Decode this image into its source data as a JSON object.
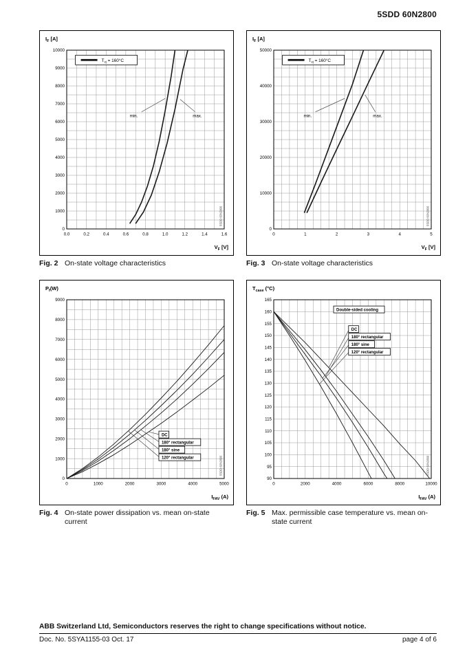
{
  "header": {
    "title": "5SDD 60N2800"
  },
  "footer": {
    "notice": "ABB Switzerland Ltd, Semiconductors reserves the right to change specifications without notice.",
    "doc": "Doc. No. 5SYA1155-03 Oct. 17",
    "page": "page 4 of 6"
  },
  "chart_data": [
    {
      "type": "line",
      "caption": {
        "fig": "Fig. 2",
        "text": "On-state voltage characteristics"
      },
      "watermark": "5SDD 60N2800",
      "x": {
        "min": 0,
        "max": 1.6,
        "step": 0.2,
        "grid": 0.1,
        "dec": 1,
        "title": {
          "pre": "V",
          "sub": "F",
          "post": " [V]"
        }
      },
      "y": {
        "min": 0,
        "max": 10000,
        "step": 1000,
        "grid": 500,
        "dec": 0,
        "title": {
          "pre": "I",
          "sub": "F",
          "post": " [A]"
        }
      },
      "legend": {
        "fx": 0.055,
        "fy": 0.028,
        "pre": "T",
        "sub": "vj",
        "post": " = 160°C"
      },
      "series": [
        {
          "name": "min",
          "w": 1.6,
          "points": [
            [
              0.64,
              300
            ],
            [
              0.7,
              800
            ],
            [
              0.76,
              1500
            ],
            [
              0.82,
              2400
            ],
            [
              0.88,
              3500
            ],
            [
              0.94,
              4900
            ],
            [
              1.0,
              6600
            ],
            [
              1.06,
              8500
            ],
            [
              1.1,
              10000
            ]
          ]
        },
        {
          "name": "max",
          "w": 1.6,
          "points": [
            [
              0.7,
              300
            ],
            [
              0.78,
              950
            ],
            [
              0.86,
              1900
            ],
            [
              0.94,
              3200
            ],
            [
              1.02,
              4800
            ],
            [
              1.1,
              6700
            ],
            [
              1.18,
              8900
            ],
            [
              1.23,
              10000
            ]
          ]
        }
      ],
      "labels": [
        {
          "text": "min.",
          "fx": 0.4,
          "fy": 0.375,
          "leader": [
            0.475,
            0.345,
            0.625,
            0.27
          ]
        },
        {
          "text": "max.",
          "fx": 0.8,
          "fy": 0.375,
          "leader": [
            0.815,
            0.345,
            0.72,
            0.275
          ]
        }
      ]
    },
    {
      "type": "line",
      "caption": {
        "fig": "Fig. 3",
        "text": "On-state voltage characteristics"
      },
      "watermark": "5SDD 60N2800",
      "x": {
        "min": 0,
        "max": 5,
        "step": 1,
        "grid": 0.25,
        "dec": 0,
        "title": {
          "pre": "V",
          "sub": "F",
          "post": " [V]"
        }
      },
      "y": {
        "min": 0,
        "max": 50000,
        "step": 10000,
        "grid": 2500,
        "dec": 0,
        "title": {
          "pre": "I",
          "sub": "F",
          "post": " [A]"
        }
      },
      "legend": {
        "fx": 0.055,
        "fy": 0.028,
        "pre": "T",
        "sub": "vj",
        "post": " = 160°C"
      },
      "series": [
        {
          "name": "min",
          "w": 1.6,
          "points": [
            [
              0.97,
              4500
            ],
            [
              1.3,
              12000
            ],
            [
              1.7,
              21500
            ],
            [
              2.1,
              31000
            ],
            [
              2.5,
              40500
            ],
            [
              2.85,
              50000
            ]
          ]
        },
        {
          "name": "max",
          "w": 1.6,
          "points": [
            [
              1.05,
              4500
            ],
            [
              1.5,
              13000
            ],
            [
              2.0,
              22300
            ],
            [
              2.5,
              31500
            ],
            [
              3.0,
              40800
            ],
            [
              3.5,
              50000
            ]
          ]
        }
      ],
      "labels": [
        {
          "text": "min.",
          "fx": 0.19,
          "fy": 0.375,
          "leader": [
            0.265,
            0.345,
            0.45,
            0.27
          ]
        },
        {
          "text": "max.",
          "fx": 0.63,
          "fy": 0.375,
          "leader": [
            0.645,
            0.345,
            0.58,
            0.25
          ]
        }
      ]
    },
    {
      "type": "line",
      "caption": {
        "fig": "Fig. 4",
        "text": "On-state power dissipation vs. mean on-state current"
      },
      "watermark": "5SDD 60N2800",
      "x": {
        "min": 0,
        "max": 5000,
        "step": 1000,
        "grid": 250,
        "dec": 0,
        "title": {
          "pre": "I",
          "sub": "FAV",
          "post": " (A)"
        }
      },
      "y": {
        "min": 0,
        "max": 9000,
        "step": 1000,
        "grid": 500,
        "dec": 0,
        "title": {
          "pre": "P",
          "sub": "f",
          "post": "(W)"
        }
      },
      "series": [
        {
          "name": "DC",
          "w": 0.9,
          "points": [
            [
              0,
              0
            ],
            [
              500,
              340
            ],
            [
              1000,
              750
            ],
            [
              1500,
              1200
            ],
            [
              2000,
              1700
            ],
            [
              2500,
              2240
            ],
            [
              3000,
              2780
            ],
            [
              3500,
              3350
            ],
            [
              4000,
              3950
            ],
            [
              4500,
              4560
            ],
            [
              5000,
              5200
            ]
          ]
        },
        {
          "name": "180-rectangular",
          "w": 0.9,
          "points": [
            [
              0,
              0
            ],
            [
              500,
              400
            ],
            [
              1000,
              880
            ],
            [
              1500,
              1420
            ],
            [
              2000,
              2000
            ],
            [
              2500,
              2640
            ],
            [
              3000,
              3300
            ],
            [
              3500,
              4000
            ],
            [
              4000,
              4750
            ],
            [
              4500,
              5530
            ],
            [
              5000,
              6350
            ]
          ]
        },
        {
          "name": "180-sine",
          "w": 0.9,
          "points": [
            [
              0,
              0
            ],
            [
              500,
              450
            ],
            [
              1000,
              980
            ],
            [
              1500,
              1580
            ],
            [
              2000,
              2230
            ],
            [
              2500,
              2930
            ],
            [
              3000,
              3670
            ],
            [
              3500,
              4440
            ],
            [
              4000,
              5250
            ],
            [
              4500,
              6110
            ],
            [
              5000,
              7000
            ]
          ]
        },
        {
          "name": "120-rectangular",
          "w": 0.9,
          "points": [
            [
              0,
              0
            ],
            [
              500,
              500
            ],
            [
              1000,
              1080
            ],
            [
              1500,
              1740
            ],
            [
              2000,
              2460
            ],
            [
              2500,
              3230
            ],
            [
              3000,
              4050
            ],
            [
              3500,
              4900
            ],
            [
              4000,
              5800
            ],
            [
              4500,
              6730
            ],
            [
              5000,
              7700
            ]
          ]
        }
      ],
      "legendBoxes": {
        "fx": 0.585,
        "fy": 0.735,
        "items": [
          {
            "text": "DC",
            "leader": [
              0.52,
              0.739
            ]
          },
          {
            "text": "180° rectangular",
            "leader": [
              0.47,
              0.727
            ]
          },
          {
            "text": "180° sine",
            "leader": [
              0.43,
              0.728
            ]
          },
          {
            "text": "120° rectangular",
            "leader": [
              0.39,
              0.734
            ]
          }
        ]
      }
    },
    {
      "type": "line",
      "caption": {
        "fig": "Fig. 5",
        "text": "Max. permissible case temperature vs. mean on-state current"
      },
      "watermark": "5SDD 60N2800",
      "x": {
        "min": 0,
        "max": 10000,
        "step": 2000,
        "grid": 500,
        "dec": 0,
        "title": {
          "pre": "I",
          "sub": "FAV",
          "post": " (A)"
        }
      },
      "y": {
        "min": 90,
        "max": 165,
        "step": 5,
        "grid": 5,
        "dec": 0,
        "title": {
          "pre": "T",
          "sub": "case",
          "post": " (°C)"
        }
      },
      "series": [
        {
          "name": "DC",
          "w": 0.9,
          "points": [
            [
              0,
              160
            ],
            [
              1000,
              153.5
            ],
            [
              2000,
              147
            ],
            [
              3000,
              140
            ],
            [
              4000,
              133
            ],
            [
              5000,
              126
            ],
            [
              6000,
              119
            ],
            [
              7000,
              112
            ],
            [
              8000,
              104.5
            ],
            [
              9000,
              97.5
            ],
            [
              9900,
              90
            ]
          ]
        },
        {
          "name": "180-rectangular",
          "w": 0.9,
          "points": [
            [
              0,
              160
            ],
            [
              1000,
              152
            ],
            [
              2000,
              144
            ],
            [
              3000,
              135.5
            ],
            [
              4000,
              126.5
            ],
            [
              5000,
              117
            ],
            [
              6000,
              107.5
            ],
            [
              7000,
              97.5
            ],
            [
              7700,
              90
            ]
          ]
        },
        {
          "name": "180-sine",
          "w": 0.9,
          "points": [
            [
              0,
              160
            ],
            [
              1000,
              151
            ],
            [
              2000,
              142
            ],
            [
              3000,
              133
            ],
            [
              4000,
              123.5
            ],
            [
              5000,
              113.5
            ],
            [
              6000,
              103
            ],
            [
              7000,
              92
            ],
            [
              7200,
              90
            ]
          ]
        },
        {
          "name": "120-rectangular",
          "w": 0.9,
          "points": [
            [
              0,
              160
            ],
            [
              1000,
              150
            ],
            [
              2000,
              139.5
            ],
            [
              3000,
              128.5
            ],
            [
              4000,
              117
            ],
            [
              5000,
              105
            ],
            [
              6000,
              92.5
            ],
            [
              6200,
              90
            ]
          ]
        }
      ],
      "labels": [
        {
          "text": "Double-sided cooling",
          "fx": 0.38,
          "fy": 0.035,
          "boxed": true
        }
      ],
      "legendBoxes": {
        "fx": 0.475,
        "fy": 0.145,
        "items": [
          {
            "text": "DC",
            "leader": [
              0.35,
              0.38
            ]
          },
          {
            "text": "180° rectangular",
            "leader": [
              0.33,
              0.428
            ]
          },
          {
            "text": "180° sine",
            "leader": [
              0.31,
              0.439
            ]
          },
          {
            "text": "120° rectangular",
            "leader": [
              0.29,
              0.472
            ]
          }
        ]
      }
    }
  ]
}
